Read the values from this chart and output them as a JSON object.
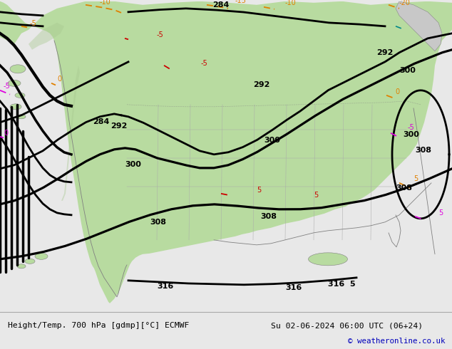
{
  "title_left": "Height/Temp. 700 hPa [gdmp][°C] ECMWF",
  "title_right": "Su 02-06-2024 06:00 UTC (06+24)",
  "copyright": "© weatheronline.co.uk",
  "bg_color": "#c8c8c8",
  "land_color": "#b8dba0",
  "water_color": "#c0c0c0",
  "mountain_color": "#b0b0b0",
  "height_color": "#000000",
  "temp_orange_color": "#e08000",
  "temp_red_color": "#cc0000",
  "temp_pink_color": "#dd00dd",
  "temp_teal_color": "#008888",
  "bottom_bg": "#e8e8e8",
  "bottom_text_color": "#000000",
  "copyright_color": "#0000bb",
  "separator_color": "#aaaaaa"
}
